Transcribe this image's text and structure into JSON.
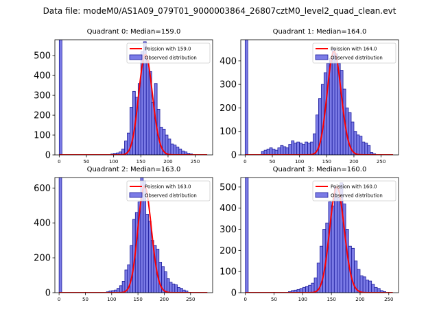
{
  "figure": {
    "suptitle": "Data file: modeM0/AS1A09_079T01_9000003864_26807cztM0_level2_quad_clean.evt"
  },
  "colors": {
    "bar_fill": "#7b7be6",
    "bar_edge": "#1a1a9a",
    "poisson_line": "#ff0000"
  },
  "chart_data": [
    {
      "type": "bar",
      "title": "Quadrant 0: Median=159.0",
      "legend_position": "top-right",
      "series": [
        {
          "name": "Poission with 159.0",
          "kind": "line"
        },
        {
          "name": "Observed distribution",
          "kind": "histogram"
        }
      ],
      "xlim": [
        -8,
        282
      ],
      "ylim": [
        0,
        580
      ],
      "xticks": [
        0,
        50,
        100,
        150,
        200,
        250
      ],
      "yticks": [
        0,
        100,
        200,
        300,
        400,
        500
      ],
      "poisson_mean": 159.0,
      "poisson_peak": 505,
      "bin_width": 5,
      "bins": [
        [
          0,
          580
        ],
        [
          95,
          5
        ],
        [
          100,
          8
        ],
        [
          105,
          10
        ],
        [
          110,
          15
        ],
        [
          115,
          30
        ],
        [
          120,
          70
        ],
        [
          125,
          110
        ],
        [
          130,
          240
        ],
        [
          135,
          320
        ],
        [
          140,
          290
        ],
        [
          145,
          360
        ],
        [
          150,
          520
        ],
        [
          155,
          570
        ],
        [
          160,
          475
        ],
        [
          165,
          420
        ],
        [
          170,
          265
        ],
        [
          175,
          360
        ],
        [
          180,
          230
        ],
        [
          185,
          140
        ],
        [
          190,
          130
        ],
        [
          195,
          100
        ],
        [
          200,
          80
        ],
        [
          205,
          55
        ],
        [
          210,
          50
        ],
        [
          215,
          40
        ],
        [
          220,
          30
        ],
        [
          225,
          20
        ],
        [
          230,
          15
        ],
        [
          235,
          8
        ],
        [
          240,
          5
        ]
      ]
    },
    {
      "type": "bar",
      "title": "Quadrant 1: Median=164.0",
      "legend_position": "top-right",
      "series": [
        {
          "name": "Poission with 164.0",
          "kind": "line"
        },
        {
          "name": "Observed distribution",
          "kind": "histogram"
        }
      ],
      "xlim": [
        -8,
        282
      ],
      "ylim": [
        0,
        490
      ],
      "xticks": [
        0,
        50,
        100,
        150,
        200,
        250
      ],
      "yticks": [
        0,
        100,
        200,
        300,
        400
      ],
      "poisson_mean": 164.0,
      "poisson_peak": 440,
      "bin_width": 5,
      "bins": [
        [
          0,
          490
        ],
        [
          30,
          15
        ],
        [
          35,
          20
        ],
        [
          40,
          25
        ],
        [
          45,
          30
        ],
        [
          50,
          25
        ],
        [
          55,
          20
        ],
        [
          60,
          30
        ],
        [
          65,
          40
        ],
        [
          70,
          35
        ],
        [
          75,
          30
        ],
        [
          80,
          45
        ],
        [
          85,
          60
        ],
        [
          90,
          50
        ],
        [
          95,
          55
        ],
        [
          100,
          50
        ],
        [
          105,
          45
        ],
        [
          110,
          55
        ],
        [
          115,
          50
        ],
        [
          120,
          55
        ],
        [
          125,
          90
        ],
        [
          130,
          170
        ],
        [
          135,
          240
        ],
        [
          140,
          300
        ],
        [
          145,
          350
        ],
        [
          150,
          390
        ],
        [
          155,
          410
        ],
        [
          160,
          450
        ],
        [
          165,
          430
        ],
        [
          170,
          390
        ],
        [
          175,
          360
        ],
        [
          180,
          280
        ],
        [
          185,
          200
        ],
        [
          190,
          180
        ],
        [
          195,
          140
        ],
        [
          200,
          100
        ],
        [
          205,
          85
        ],
        [
          210,
          80
        ],
        [
          215,
          55
        ],
        [
          220,
          50
        ],
        [
          225,
          40
        ],
        [
          230,
          10
        ],
        [
          235,
          5
        ]
      ]
    },
    {
      "type": "bar",
      "title": "Quadrant 2: Median=163.0",
      "legend_position": "top-right",
      "series": [
        {
          "name": "Poission with 163.0",
          "kind": "line"
        },
        {
          "name": "Observed distribution",
          "kind": "histogram"
        }
      ],
      "xlim": [
        -8,
        292
      ],
      "ylim": [
        0,
        660
      ],
      "xticks": [
        0,
        50,
        100,
        150,
        200,
        250
      ],
      "yticks": [
        0,
        200,
        400,
        600
      ],
      "poisson_mean": 163.0,
      "poisson_peak": 610,
      "bin_width": 5,
      "bins": [
        [
          0,
          660
        ],
        [
          90,
          5
        ],
        [
          95,
          10
        ],
        [
          100,
          12
        ],
        [
          105,
          15
        ],
        [
          110,
          25
        ],
        [
          115,
          40
        ],
        [
          120,
          65
        ],
        [
          125,
          130
        ],
        [
          130,
          160
        ],
        [
          135,
          270
        ],
        [
          140,
          420
        ],
        [
          145,
          460
        ],
        [
          150,
          520
        ],
        [
          155,
          660
        ],
        [
          160,
          640
        ],
        [
          165,
          450
        ],
        [
          170,
          410
        ],
        [
          175,
          300
        ],
        [
          180,
          270
        ],
        [
          185,
          250
        ],
        [
          190,
          175
        ],
        [
          195,
          150
        ],
        [
          200,
          120
        ],
        [
          205,
          80
        ],
        [
          210,
          60
        ],
        [
          215,
          50
        ],
        [
          220,
          45
        ],
        [
          225,
          30
        ],
        [
          230,
          25
        ],
        [
          235,
          15
        ],
        [
          240,
          10
        ]
      ]
    },
    {
      "type": "bar",
      "title": "Quadrant 3: Median=160.0",
      "legend_position": "top-right",
      "series": [
        {
          "name": "Poission with 160.0",
          "kind": "line"
        },
        {
          "name": "Observed distribution",
          "kind": "histogram"
        }
      ],
      "xlim": [
        -8,
        267
      ],
      "ylim": [
        0,
        545
      ],
      "xticks": [
        0,
        50,
        100,
        150,
        200,
        250
      ],
      "yticks": [
        0,
        100,
        200,
        300,
        400,
        500
      ],
      "poisson_mean": 160.0,
      "poisson_peak": 500,
      "bin_width": 5,
      "bins": [
        [
          0,
          545
        ],
        [
          75,
          5
        ],
        [
          80,
          10
        ],
        [
          85,
          12
        ],
        [
          90,
          15
        ],
        [
          95,
          20
        ],
        [
          100,
          25
        ],
        [
          105,
          30
        ],
        [
          110,
          35
        ],
        [
          115,
          45
        ],
        [
          120,
          70
        ],
        [
          125,
          140
        ],
        [
          130,
          220
        ],
        [
          135,
          300
        ],
        [
          140,
          330
        ],
        [
          145,
          430
        ],
        [
          150,
          410
        ],
        [
          155,
          500
        ],
        [
          160,
          450
        ],
        [
          165,
          520
        ],
        [
          170,
          420
        ],
        [
          175,
          300
        ],
        [
          180,
          220
        ],
        [
          185,
          210
        ],
        [
          190,
          150
        ],
        [
          195,
          110
        ],
        [
          200,
          80
        ],
        [
          205,
          75
        ],
        [
          210,
          60
        ],
        [
          215,
          55
        ],
        [
          220,
          40
        ],
        [
          225,
          25
        ],
        [
          230,
          20
        ],
        [
          235,
          10
        ],
        [
          240,
          5
        ]
      ]
    }
  ]
}
